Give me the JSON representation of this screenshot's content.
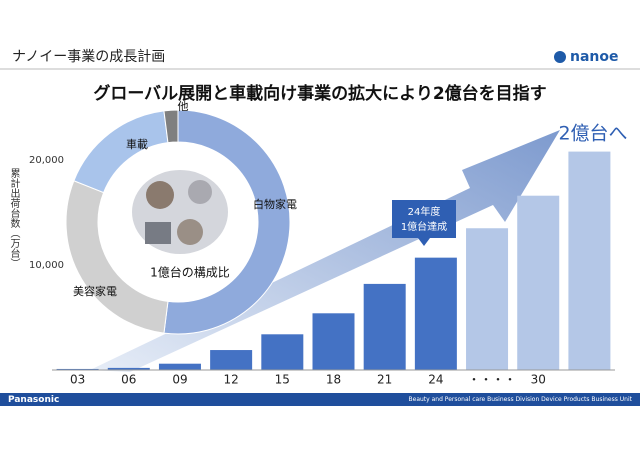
{
  "header": {
    "section": "ナノイー事業の成長計画",
    "logo": "nanoe",
    "title": "グローバル展開と車載向け事業の拡大により2億台を目指す"
  },
  "footer": {
    "brand": "Panasonic",
    "unit": "Beauty and Personal care Business Division Device Products Business Unit"
  },
  "chart_data": [
    {
      "type": "bar",
      "y_label": "累計出荷台数（万台）",
      "categories": [
        "03",
        "06",
        "09",
        "12",
        "15",
        "18",
        "21",
        "24",
        null,
        "30",
        null
      ],
      "values": [
        100,
        200,
        600,
        1900,
        3400,
        5400,
        8200,
        10700,
        13500,
        16600,
        20800
      ],
      "colors": [
        "#4472c4",
        "#4472c4",
        "#4472c4",
        "#4472c4",
        "#4472c4",
        "#4472c4",
        "#4472c4",
        "#4472c4",
        "#b4c7e7",
        "#b4c7e7",
        "#b4c7e7"
      ],
      "ylim": [
        0,
        21000
      ],
      "yticks": [
        {
          "value": 10000,
          "label": "10,000"
        },
        {
          "value": 20000,
          "label": "20,000"
        }
      ],
      "grid": false,
      "annotations": [
        "・・・・",
        "24年度",
        "1億台達成",
        "2億台へ"
      ]
    },
    {
      "type": "pie",
      "title": "1億台の構成比",
      "categories": [
        "白物家電",
        "美容家電",
        "車載",
        "他"
      ],
      "values": [
        52,
        29,
        17,
        2
      ],
      "colors": [
        "#8faadc",
        "#d0d0d0",
        "#a9c4eb",
        "#7f7f7f"
      ]
    }
  ]
}
